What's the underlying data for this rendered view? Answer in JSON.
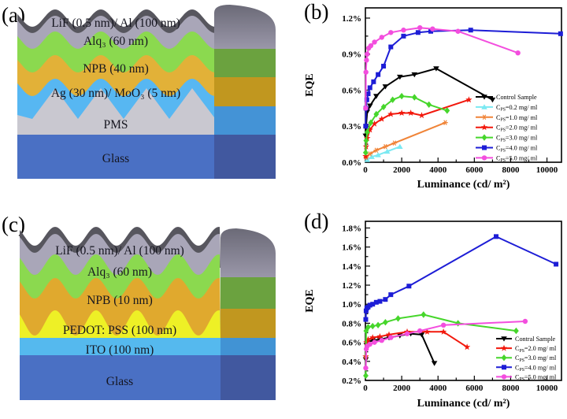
{
  "figure": {
    "panel_labels": {
      "a": "(a)",
      "b": "(b)",
      "c": "(c)",
      "d": "(d)"
    },
    "background": "#ffffff"
  },
  "device_a": {
    "top_color": "#57565e",
    "cap_colors": [
      "#6b6a77",
      "#9a97a9"
    ],
    "layers": [
      {
        "name": "lif-al",
        "label": "LiF (0.5 nm)/ Al (100 nm)",
        "color": "#a9a6b8",
        "side_color": "#8f8ba0"
      },
      {
        "name": "alq3",
        "label": "Alq₃ (60 nm)",
        "color": "#8bd94f",
        "side_color": "#6ba23f"
      },
      {
        "name": "npb",
        "label": "NPB (40 nm)",
        "color": "#e2b138",
        "side_color": "#c1971f"
      },
      {
        "name": "ag-moo3",
        "label": "Ag (30 nm)/ MoO₃ (5 nm)",
        "color": "#57b7f2",
        "side_color": "#4493d6"
      },
      {
        "name": "pms",
        "label": "PMS",
        "color": "#c9c8d0"
      },
      {
        "name": "glass",
        "label": "Glass",
        "color": "#4a70c4",
        "side_color": "#41589f"
      }
    ]
  },
  "device_c": {
    "top_color": "#57565e",
    "cap_colors": [
      "#6b6a77",
      "#9a97a9"
    ],
    "layers": [
      {
        "name": "lif-al",
        "label": "LiF (0.5 nm)/ Al (100 nm)",
        "color": "#a9a6b8",
        "side_color": "#8f8ba0"
      },
      {
        "name": "alq3",
        "label": "Alq₃ (60 nm)",
        "color": "#8bd94f",
        "side_color": "#6ba23f"
      },
      {
        "name": "npb",
        "label": "NPB (10 nm)",
        "color": "#e0a92e",
        "side_color": "#c1971f"
      },
      {
        "name": "pedot-pss",
        "label": "PEDOT: PSS (100 nm)",
        "color": "#eef026"
      },
      {
        "name": "ito",
        "label": "ITO (100 nm)",
        "color": "#55b9ee",
        "side_color": "#4193d4"
      },
      {
        "name": "glass",
        "label": "Glass",
        "color": "#4a70c4",
        "side_color": "#41589f"
      }
    ]
  },
  "chart_data": [
    {
      "id": "b",
      "type": "line",
      "title": "",
      "xlabel": "Luminance (cd/ m²)",
      "ylabel": "EQE",
      "xlim": [
        0,
        10800
      ],
      "ylim": [
        0,
        1.285
      ],
      "xticks": [
        0,
        2000,
        4000,
        6000,
        8000,
        10000
      ],
      "xtick_labels": [
        "0",
        "2000",
        "4000",
        "6000",
        "8000",
        "10000"
      ],
      "xminor": 1000,
      "yticks": [
        0,
        0.3,
        0.6,
        0.9,
        1.2
      ],
      "ytick_labels": [
        "0.0%",
        "0.3%",
        "0.6%",
        "0.9%",
        "1.2%"
      ],
      "yminor": 0.15,
      "grid": false,
      "legend_position": "lower right",
      "series": [
        {
          "name": "control-sample",
          "label": {
            "base": "Control Sample"
          },
          "color": "#000000",
          "marker": "triangle-down",
          "x": [
            15,
            40,
            100,
            250,
            600,
            1100,
            1900,
            2700,
            3900,
            7000
          ],
          "y": [
            0.22,
            0.3,
            0.42,
            0.47,
            0.55,
            0.63,
            0.71,
            0.73,
            0.78,
            0.52
          ]
        },
        {
          "name": "cps-0.2",
          "label": {
            "base": "C",
            "sub": "PS",
            "rest": "=0.2 mg/ ml"
          },
          "color": "#7be9f2",
          "marker": "triangle-up",
          "x": [
            100,
            350,
            700,
            1200,
            1900
          ],
          "y": [
            0.02,
            0.045,
            0.06,
            0.09,
            0.13
          ]
        },
        {
          "name": "cps-1.0",
          "label": {
            "base": "C",
            "sub": "PS",
            "rest": "=1.0 mg/ ml"
          },
          "color": "#f08438",
          "marker": "asterisk",
          "x": [
            40,
            250,
            600,
            1100,
            1600,
            4400
          ],
          "y": [
            0.04,
            0.07,
            0.1,
            0.13,
            0.16,
            0.33
          ]
        },
        {
          "name": "cps-2.0",
          "label": {
            "base": "C",
            "sub": "PS",
            "rest": "=2.0 mg/ ml"
          },
          "color": "#f2180c",
          "marker": "star",
          "x": [
            15,
            40,
            100,
            250,
            500,
            900,
            1400,
            2000,
            2500,
            3100,
            5700
          ],
          "y": [
            0.05,
            0.13,
            0.2,
            0.27,
            0.32,
            0.36,
            0.4,
            0.41,
            0.41,
            0.39,
            0.52
          ]
        },
        {
          "name": "cps-3.0",
          "label": {
            "base": "C",
            "sub": "PS",
            "rest": "=3.0 mg/ ml"
          },
          "color": "#46d62b",
          "marker": "diamond",
          "x": [
            15,
            40,
            100,
            300,
            600,
            1000,
            1500,
            2000,
            2700,
            3500,
            4500
          ],
          "y": [
            0.08,
            0.18,
            0.25,
            0.33,
            0.4,
            0.46,
            0.52,
            0.55,
            0.54,
            0.48,
            0.43
          ]
        },
        {
          "name": "cps-4.0",
          "label": {
            "base": "C",
            "sub": "PS",
            "rest": "=4.0 mg/ ml"
          },
          "color": "#1d1dd6",
          "marker": "square",
          "x": [
            15,
            30,
            80,
            150,
            250,
            450,
            700,
            1000,
            1400,
            2100,
            2900,
            3600,
            5800,
            10750
          ],
          "y": [
            0.3,
            0.45,
            0.52,
            0.57,
            0.62,
            0.67,
            0.73,
            0.8,
            0.96,
            1.05,
            1.08,
            1.09,
            1.1,
            1.07
          ]
        },
        {
          "name": "cps-5.0",
          "label": {
            "base": "C",
            "sub": "PS",
            "rest": "=5.0 mg/ ml"
          },
          "color": "#f34ede",
          "marker": "circle",
          "x": [
            15,
            30,
            60,
            100,
            180,
            300,
            500,
            900,
            1400,
            2100,
            3000,
            3700,
            5100,
            8400
          ],
          "y": [
            0.45,
            0.75,
            0.85,
            0.9,
            0.95,
            0.97,
            1.0,
            1.04,
            1.08,
            1.1,
            1.12,
            1.11,
            1.09,
            0.91
          ]
        }
      ]
    },
    {
      "id": "d",
      "type": "line",
      "title": "",
      "xlabel": "Luminance (cd/ m²)",
      "ylabel": "EQE",
      "xlim": [
        0,
        10800
      ],
      "ylim": [
        0.2,
        1.87
      ],
      "xticks": [
        0,
        2000,
        4000,
        6000,
        8000,
        10000
      ],
      "xtick_labels": [
        "0",
        "2000",
        "4000",
        "6000",
        "8000",
        "10000"
      ],
      "xminor": 1000,
      "yticks": [
        0.2,
        0.4,
        0.6,
        0.8,
        1.0,
        1.2,
        1.4,
        1.6,
        1.8
      ],
      "ytick_labels": [
        "0.2%",
        "0.4%",
        "0.6%",
        "0.8%",
        "1.0%",
        "1.2%",
        "1.4%",
        "1.6%",
        "1.8%"
      ],
      "yminor": 0.1,
      "grid": false,
      "legend_position": "lower right",
      "series": [
        {
          "name": "contral-sample",
          "label": {
            "base": "Contral Sample"
          },
          "color": "#000000",
          "marker": "triangle-down",
          "x": [
            20,
            60,
            150,
            400,
            800,
            1300,
            1900,
            2500,
            3100,
            3800
          ],
          "y": [
            0.42,
            0.57,
            0.6,
            0.62,
            0.63,
            0.65,
            0.67,
            0.69,
            0.68,
            0.38
          ]
        },
        {
          "name": "cps-2.0",
          "label": {
            "base": "C",
            "sub": "PS",
            "rest": "=2.0 mg/ ml"
          },
          "color": "#f2180c",
          "marker": "star",
          "x": [
            20,
            60,
            150,
            400,
            800,
            1300,
            2300,
            3400,
            4300,
            5600
          ],
          "y": [
            0.45,
            0.6,
            0.63,
            0.65,
            0.66,
            0.68,
            0.71,
            0.71,
            0.71,
            0.55
          ]
        },
        {
          "name": "cps-3.0",
          "label": {
            "base": "C",
            "sub": "PS",
            "rest": "=3.0 mg/ ml"
          },
          "color": "#46d62b",
          "marker": "diamond",
          "x": [
            20,
            40,
            150,
            400,
            700,
            1100,
            1800,
            3200,
            5100,
            8300
          ],
          "y": [
            0.25,
            0.72,
            0.76,
            0.77,
            0.78,
            0.81,
            0.85,
            0.89,
            0.8,
            0.72
          ]
        },
        {
          "name": "cps-4.0",
          "label": {
            "base": "C",
            "sub": "PS",
            "rest": "=4.0 mg/ ml"
          },
          "color": "#1d1dd6",
          "marker": "square",
          "x": [
            20,
            40,
            80,
            150,
            250,
            400,
            600,
            800,
            1100,
            1400,
            2400,
            7200,
            10500
          ],
          "y": [
            0.84,
            0.93,
            0.96,
            0.97,
            0.99,
            1.0,
            1.02,
            1.03,
            1.05,
            1.1,
            1.19,
            1.71,
            1.42
          ]
        },
        {
          "name": "cps-5.0",
          "label": {
            "base": "C",
            "sub": "PS",
            "rest": "=5.0 mg/ ml"
          },
          "color": "#f34ede",
          "marker": "circle",
          "x": [
            20,
            50,
            100,
            250,
            500,
            900,
            1400,
            2300,
            3000,
            4300,
            8800
          ],
          "y": [
            0.33,
            0.53,
            0.56,
            0.58,
            0.6,
            0.62,
            0.65,
            0.69,
            0.72,
            0.78,
            0.82
          ]
        }
      ]
    }
  ]
}
